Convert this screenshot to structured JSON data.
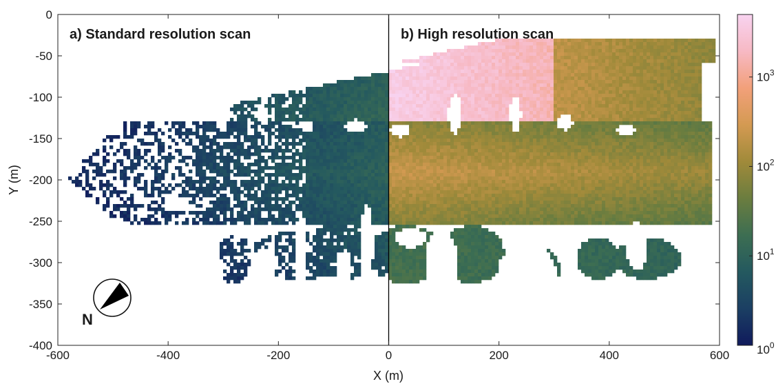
{
  "chart_data": {
    "type": "heatmap",
    "xlabel": "X (m)",
    "ylabel": "Y (m)",
    "xlim": [
      -600,
      600
    ],
    "ylim": [
      -400,
      0
    ],
    "x_ticks": [
      -600,
      -400,
      -200,
      0,
      200,
      400,
      600
    ],
    "x_tick_labels": [
      "-600",
      "-400",
      "-200",
      "0",
      "200",
      "400",
      "600"
    ],
    "y_ticks": [
      0,
      -50,
      -100,
      -150,
      -200,
      -250,
      -300,
      -350,
      -400
    ],
    "y_tick_labels": [
      "0",
      "-50",
      "-100",
      "-150",
      "-200",
      "-250",
      "-300",
      "-350",
      "-400"
    ],
    "grid": false,
    "panels": [
      {
        "label": "a) Standard resolution scan",
        "x_range": [
          -600,
          0
        ]
      },
      {
        "label": "b) High resolution scan",
        "x_range": [
          0,
          600
        ]
      }
    ],
    "divider_x": 0,
    "colorbar": {
      "scale": "log",
      "range": [
        1,
        5000
      ],
      "ticks": [
        1,
        10,
        100,
        1000
      ],
      "tick_labels": [
        {
          "base": "10",
          "exp": "0"
        },
        {
          "base": "10",
          "exp": "1"
        },
        {
          "base": "10",
          "exp": "2"
        },
        {
          "base": "10",
          "exp": "3"
        }
      ],
      "colormap": [
        "#101a5c",
        "#1b3f63",
        "#24595f",
        "#3d6e52",
        "#6b7d3f",
        "#a08a3a",
        "#d49a52",
        "#f2a07a",
        "#f7b9c4",
        "#f8d3f0"
      ]
    },
    "compass": {
      "label": "N"
    }
  }
}
